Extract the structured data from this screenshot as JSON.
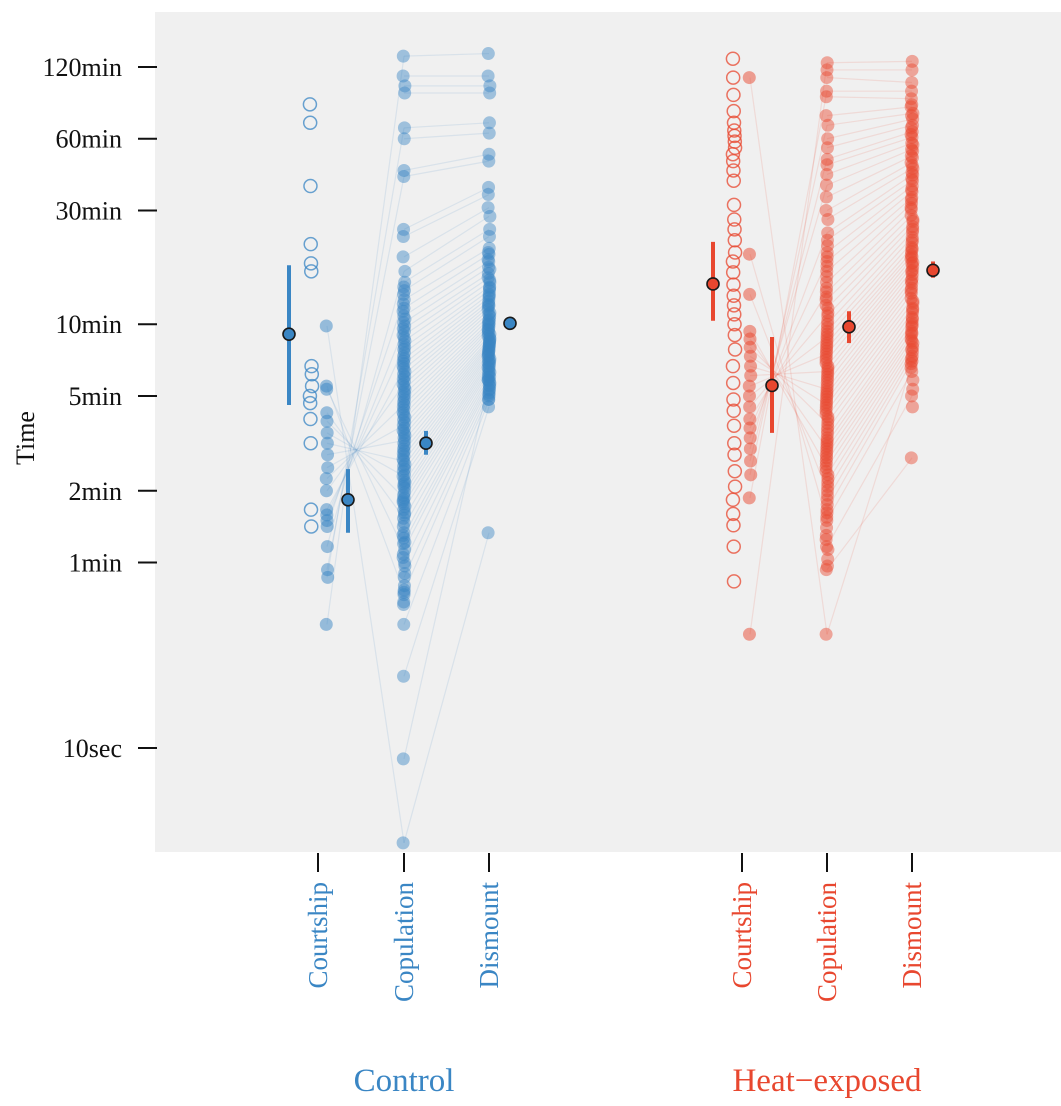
{
  "chart_data": {
    "type": "scatter",
    "title": "",
    "ylabel": "Time",
    "y_scale": "log",
    "y_unit": "seconds",
    "ylim_seconds": [
      3,
      9000
    ],
    "y_ticks": [
      {
        "label": "120min",
        "seconds": 7200
      },
      {
        "label": "60min",
        "seconds": 3600
      },
      {
        "label": "30min",
        "seconds": 1800
      },
      {
        "label": "10min",
        "seconds": 600
      },
      {
        "label": "5min",
        "seconds": 300
      },
      {
        "label": "2min",
        "seconds": 120
      },
      {
        "label": "1min",
        "seconds": 60
      },
      {
        "label": "10sec",
        "seconds": 10
      }
    ],
    "background_color": "#f0f0f0",
    "markers": "hollow circles = not proceeding to next stage; filled circles = proceeding; faint lines join stages of the same pair; dark dot with vertical bar = group mean and interval",
    "groups": [
      {
        "name": "Control",
        "color": "#3a86c4",
        "stages": [
          "Courtship",
          "Copulation",
          "Dismount"
        ],
        "courtship_hollow_seconds": [
          5020,
          4200,
          2280,
          1300,
          1080,
          1000,
          400,
          370,
          330,
          300,
          280,
          240,
          190,
          100,
          85
        ],
        "courtship_filled_seconds": [
          590,
          330,
          320,
          255,
          235,
          210,
          190,
          170,
          150,
          135,
          120,
          100,
          95,
          90,
          85,
          70,
          56,
          52,
          33
        ],
        "paired_copulation_seconds": [
          4,
          9,
          20,
          33,
          45,
          52,
          60,
          68,
          73,
          78,
          85,
          92,
          100,
          106,
          112,
          118,
          123,
          130,
          138,
          145,
          152,
          160,
          168,
          176,
          185,
          195,
          205,
          215,
          226,
          238,
          250,
          263,
          276,
          290,
          305,
          320,
          336,
          353,
          370,
          390,
          410,
          430,
          455,
          480,
          510,
          540,
          575,
          610,
          650,
          700,
          760,
          830,
          900,
          1000,
          1150,
          1400,
          1500,
          2500,
          2650,
          3600,
          4000,
          5600,
          6000,
          6600,
          8000
        ],
        "paired_dismount_seconds": [
          80,
          350,
          270,
          290,
          300,
          310,
          320,
          330,
          340,
          350,
          360,
          370,
          380,
          390,
          400,
          410,
          420,
          430,
          440,
          450,
          460,
          470,
          480,
          490,
          500,
          510,
          520,
          535,
          550,
          565,
          580,
          595,
          610,
          630,
          650,
          670,
          690,
          710,
          730,
          750,
          775,
          800,
          830,
          860,
          900,
          940,
          980,
          1040,
          1100,
          1180,
          1250,
          1400,
          1500,
          1700,
          1850,
          2100,
          2250,
          2900,
          3100,
          3800,
          4200,
          5600,
          6000,
          6600,
          8200
        ],
        "extra_copulation_seconds": [
          40,
          41,
          44,
          46,
          48,
          54,
          58,
          63,
          65,
          72,
          76,
          80,
          88,
          95,
          97,
          103,
          108,
          110,
          115,
          125,
          128,
          133,
          140,
          148,
          155,
          163,
          172,
          180,
          190,
          200,
          210,
          220,
          232,
          244,
          256,
          270,
          283,
          298,
          312,
          328,
          345,
          362,
          380,
          400,
          420,
          440,
          470,
          495,
          525,
          560,
          590,
          630,
          680,
          730,
          800,
          860
        ],
        "extra_dismount_seconds": [
          290,
          305,
          318,
          333,
          347,
          362,
          377,
          395,
          412,
          425,
          445,
          465,
          485,
          505,
          527,
          545,
          570,
          600,
          620,
          660,
          720,
          790,
          850,
          920,
          1020,
          1120,
          1200
        ],
        "summary": [
          {
            "stage": "Courtship (hollow)",
            "mean_seconds": 545,
            "interval_seconds": [
              275,
              1060
            ]
          },
          {
            "stage": "Courtship (filled)",
            "mean_seconds": 110,
            "interval_seconds": [
              80,
              148
            ]
          },
          {
            "stage": "Copulation",
            "mean_seconds": 190,
            "interval_seconds": [
              170,
              214
            ]
          },
          {
            "stage": "Dismount",
            "mean_seconds": 605,
            "interval_seconds": [
              585,
              630
            ]
          }
        ]
      },
      {
        "name": "Heat−exposed",
        "color": "#e8472f",
        "stages": [
          "Courtship",
          "Copulation",
          "Dismount"
        ],
        "courtship_hollow_seconds": [
          7800,
          6500,
          5500,
          4700,
          4200,
          3900,
          3700,
          3500,
          3300,
          3100,
          2900,
          2650,
          2400,
          1900,
          1650,
          1500,
          1350,
          1200,
          1100,
          990,
          880,
          790,
          720,
          660,
          600,
          540,
          470,
          400,
          340,
          290,
          260,
          225,
          190,
          170,
          145,
          125,
          110,
          96,
          86,
          70,
          50
        ],
        "courtship_filled_seconds": [
          6500,
          1180,
          800,
          560,
          520,
          480,
          440,
          400,
          365,
          330,
          300,
          270,
          240,
          220,
          200,
          180,
          160,
          140,
          112,
          30
        ],
        "paired_copulation_seconds": [
          30,
          56,
          70,
          90,
          100,
          110,
          120,
          130,
          140,
          150,
          160,
          170,
          180,
          190,
          200,
          215,
          230,
          245,
          260,
          275,
          290,
          305,
          320,
          340,
          360,
          380,
          400,
          425,
          450,
          475,
          500,
          530,
          560,
          600,
          650,
          700,
          760,
          820,
          900,
          1000,
          1100,
          1200,
          1350,
          1450,
          1650,
          1800,
          2050,
          2300,
          2550,
          2800,
          2950,
          3300,
          3600,
          4100,
          4500,
          5400,
          5700,
          6500,
          7000,
          7500
        ],
        "paired_dismount_seconds": [
          410,
          165,
          300,
          380,
          420,
          440,
          460,
          480,
          500,
          520,
          540,
          560,
          585,
          610,
          640,
          670,
          700,
          735,
          770,
          810,
          850,
          890,
          930,
          970,
          1010,
          1050,
          1090,
          1130,
          1170,
          1210,
          1260,
          1320,
          1390,
          1460,
          1540,
          1620,
          1720,
          1820,
          1930,
          2040,
          2160,
          2280,
          2400,
          2540,
          2700,
          2860,
          3050,
          3250,
          3450,
          3650,
          3850,
          4100,
          4350,
          4600,
          4900,
          5300,
          5700,
          6200,
          7000,
          7600
        ],
        "extra_copulation_seconds": [
          58,
          62,
          68,
          75,
          78,
          84,
          93,
          97,
          105,
          115,
          125,
          135,
          145,
          155,
          165,
          175,
          185,
          195,
          208,
          222,
          238,
          252,
          268,
          282,
          298,
          312,
          330,
          350,
          370,
          390,
          412,
          436,
          462,
          488,
          515,
          545,
          580,
          620,
          670,
          720,
          780,
          850,
          950,
          1050,
          1150,
          1280
        ],
        "extra_dismount_seconds": [
          270,
          320,
          350,
          395,
          430,
          470,
          510,
          550,
          595,
          630,
          690,
          750,
          830,
          910,
          1000,
          1080,
          1150,
          1240,
          1350,
          1500,
          1650,
          1850,
          2000,
          2200,
          2450,
          2600,
          2780,
          3000,
          3200,
          3400,
          3750,
          4000,
          4500,
          5000
        ],
        "summary": [
          {
            "stage": "Courtship (hollow)",
            "mean_seconds": 885,
            "interval_seconds": [
              620,
              1330
            ]
          },
          {
            "stage": "Courtship (filled)",
            "mean_seconds": 332,
            "interval_seconds": [
              210,
              530
            ]
          },
          {
            "stage": "Copulation",
            "mean_seconds": 585,
            "interval_seconds": [
              500,
              680
            ]
          },
          {
            "stage": "Dismount",
            "mean_seconds": 1010,
            "interval_seconds": [
              940,
              1100
            ]
          }
        ]
      }
    ]
  }
}
